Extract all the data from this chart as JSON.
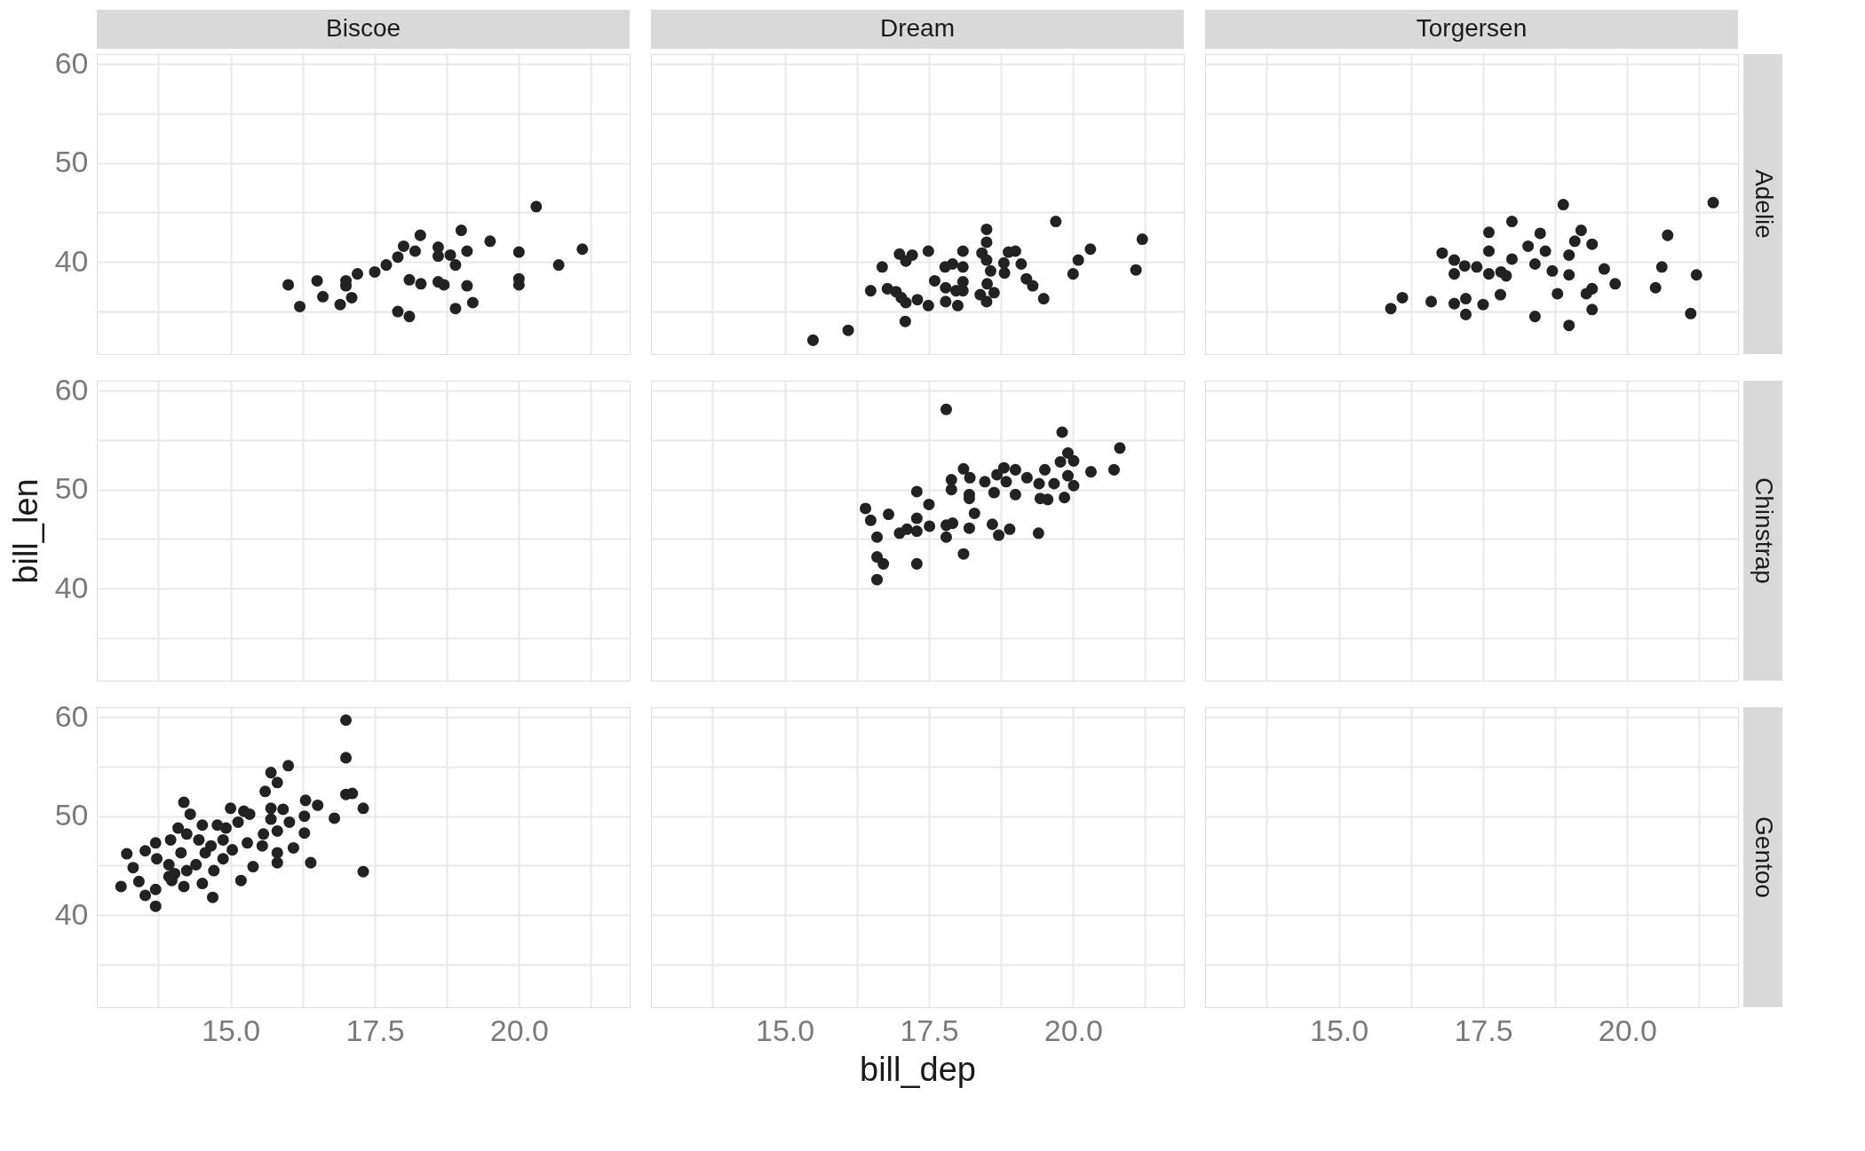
{
  "chart_data": [
    {
      "type": "scatter",
      "title": "Biscoe",
      "tick_labels": "y",
      "marker": "circle",
      "grid": true,
      "color": "#222222",
      "x": [
        20.3,
        18.29,
        19.0,
        18.0,
        18.2,
        18.6,
        18.6,
        18.81,
        18.9,
        19.1,
        19.5,
        20.0,
        21.1,
        20.69,
        17.9,
        17.7,
        17.5,
        17.2,
        17.0,
        17.0,
        17.1,
        16.9,
        16.5,
        16.6,
        16.0,
        16.2,
        18.1,
        18.3,
        18.6,
        18.7,
        19.1,
        19.2,
        18.9,
        17.9,
        18.1,
        20.0,
        20.0
      ],
      "values": [
        45.6,
        42.7,
        43.2,
        41.6,
        41.1,
        41.5,
        40.6,
        40.7,
        39.7,
        41.1,
        42.1,
        41.0,
        41.3,
        39.7,
        40.5,
        39.7,
        39.0,
        38.8,
        38.1,
        37.6,
        36.4,
        35.7,
        38.1,
        36.5,
        37.7,
        35.5,
        38.2,
        37.8,
        38.0,
        37.7,
        37.6,
        35.9,
        35.3,
        35.0,
        34.5,
        38.3,
        37.7
      ],
      "xlim": [
        12.68,
        21.92
      ],
      "ylim": [
        30.7,
        61.0
      ],
      "xticks": [
        {
          "value": 13.75,
          "label": null
        },
        {
          "value": 15,
          "label": null
        },
        {
          "value": 16.25,
          "label": null
        },
        {
          "value": 17.5,
          "label": null
        },
        {
          "value": 18.75,
          "label": null
        },
        {
          "value": 20,
          "label": null
        },
        {
          "value": 21.25,
          "label": null
        }
      ],
      "yticks": [
        {
          "value": 35,
          "label": null
        },
        40,
        {
          "value": 45,
          "label": null
        },
        50,
        {
          "value": 55,
          "label": null
        },
        60
      ]
    },
    {
      "type": "scatter",
      "title": "Dream",
      "tick_labels": false,
      "marker": "circle",
      "grid": true,
      "color": "#222222",
      "x": [
        15.49,
        16.1,
        17.09,
        16.49,
        16.69,
        16.99,
        17.1,
        17.21,
        17.49,
        16.78,
        16.93,
        17.02,
        17.1,
        17.3,
        17.49,
        17.6,
        17.78,
        17.91,
        18.09,
        18.09,
        17.79,
        17.79,
        17.97,
        18.09,
        18.09,
        18.0,
        18.5,
        18.5,
        18.42,
        18.5,
        18.57,
        18.51,
        18.39,
        18.5,
        18.63,
        18.8,
        18.81,
        18.88,
        19.0,
        19.1,
        19.19,
        19.3,
        19.49,
        19.7,
        20.09,
        20.3,
        20.0,
        21.2,
        21.09
      ],
      "values": [
        32.1,
        33.1,
        34.0,
        37.1,
        39.5,
        40.8,
        40.1,
        40.7,
        41.1,
        37.3,
        37.0,
        36.4,
        35.9,
        36.2,
        35.6,
        38.1,
        39.5,
        39.8,
        39.5,
        41.1,
        37.4,
        36.0,
        37.1,
        38.0,
        37.1,
        35.6,
        43.3,
        42.0,
        40.9,
        40.2,
        39.1,
        37.8,
        36.7,
        36.0,
        36.9,
        39.9,
        38.9,
        41.0,
        41.1,
        39.8,
        38.3,
        37.6,
        36.3,
        44.1,
        40.2,
        41.3,
        38.8,
        42.3,
        39.2
      ],
      "xlim": [
        12.68,
        21.92
      ],
      "ylim": [
        30.7,
        61.0
      ],
      "xticks": [
        {
          "value": 13.75,
          "label": null
        },
        {
          "value": 15,
          "label": null
        },
        {
          "value": 16.25,
          "label": null
        },
        {
          "value": 17.5,
          "label": null
        },
        {
          "value": 18.75,
          "label": null
        },
        {
          "value": 20,
          "label": null
        },
        {
          "value": 21.25,
          "label": null
        }
      ],
      "yticks": [
        {
          "value": 35,
          "label": null
        },
        40,
        {
          "value": 45,
          "label": null
        },
        50,
        {
          "value": 55,
          "label": null
        },
        60
      ]
    },
    {
      "type": "scatter",
      "title": "Torgersen",
      "y2label": "Adelie",
      "tick_labels": false,
      "marker": "circle",
      "grid": true,
      "color": "#222222",
      "x": [
        18.89,
        21.49,
        18.0,
        17.6,
        18.49,
        19.2,
        19.09,
        19.39,
        18.28,
        18.58,
        17.6,
        16.79,
        17.0,
        17.18,
        17.39,
        17.6,
        17.81,
        17.9,
        17.0,
        18.0,
        18.4,
        18.7,
        18.99,
        18.99,
        19.6,
        19.79,
        19.39,
        19.29,
        18.79,
        19.39,
        18.4,
        18.99,
        17.8,
        17.5,
        17.2,
        17.0,
        17.2,
        16.6,
        16.1,
        15.9,
        20.7,
        20.6,
        20.49,
        21.2,
        21.1
      ],
      "values": [
        45.8,
        46.0,
        44.1,
        43.0,
        42.9,
        43.2,
        42.1,
        41.8,
        41.6,
        41.1,
        41.1,
        40.9,
        40.2,
        39.6,
        39.5,
        38.8,
        39.0,
        38.6,
        38.8,
        40.3,
        39.8,
        39.1,
        40.7,
        38.7,
        39.3,
        37.8,
        37.3,
        36.8,
        36.8,
        35.2,
        34.5,
        33.6,
        36.7,
        35.7,
        36.3,
        35.8,
        34.7,
        36.0,
        36.4,
        35.3,
        42.7,
        39.5,
        37.4,
        38.7,
        34.8
      ],
      "xlim": [
        12.68,
        21.92
      ],
      "ylim": [
        30.7,
        61.0
      ],
      "xticks": [
        {
          "value": 13.75,
          "label": null
        },
        {
          "value": 15,
          "label": null
        },
        {
          "value": 16.25,
          "label": null
        },
        {
          "value": 17.5,
          "label": null
        },
        {
          "value": 18.75,
          "label": null
        },
        {
          "value": 20,
          "label": null
        },
        {
          "value": 21.25,
          "label": null
        }
      ],
      "yticks": [
        {
          "value": 35,
          "label": null
        },
        40,
        {
          "value": 45,
          "label": null
        },
        50,
        {
          "value": 55,
          "label": null
        },
        60
      ]
    },
    {
      "type": "scatter",
      "ylabel": "bill_len",
      "tick_labels": "y",
      "grid": true,
      "xlim": [
        12.68,
        21.92
      ],
      "ylim": [
        30.7,
        61.0
      ],
      "xticks": [
        {
          "value": 13.75,
          "label": null
        },
        {
          "value": 15,
          "label": null
        },
        {
          "value": 16.25,
          "label": null
        },
        {
          "value": 17.5,
          "label": null
        },
        {
          "value": 18.75,
          "label": null
        },
        {
          "value": 20,
          "label": null
        },
        {
          "value": 21.25,
          "label": null
        }
      ],
      "yticks": [
        {
          "value": 35,
          "label": null
        },
        40,
        {
          "value": 45,
          "label": null
        },
        50,
        {
          "value": 55,
          "label": null
        },
        60
      ]
    },
    {
      "type": "scatter",
      "tick_labels": false,
      "marker": "circle",
      "grid": true,
      "color": "#222222",
      "x": [
        17.8,
        19.81,
        20.81,
        19.91,
        20.01,
        19.78,
        20.31,
        20.71,
        19.51,
        18.1,
        18.21,
        17.89,
        17.89,
        18.8,
        19.0,
        19.2,
        18.68,
        18.47,
        18.63,
        19.0,
        18.84,
        19.41,
        19.67,
        19.91,
        20.01,
        19.43,
        19.56,
        19.85,
        18.2,
        18.2,
        17.29,
        17.5,
        18.29,
        16.4,
        16.49,
        16.8,
        16.6,
        16.99,
        17.12,
        17.29,
        17.29,
        17.51,
        17.8,
        17.91,
        17.8,
        18.2,
        18.6,
        18.71,
        18.9,
        19.4,
        18.1,
        16.6,
        16.71,
        17.29,
        16.6
      ],
      "values": [
        58.1,
        55.8,
        54.2,
        53.7,
        52.9,
        52.8,
        51.8,
        52.0,
        52.0,
        52.1,
        51.2,
        51.0,
        50.0,
        52.2,
        52.0,
        51.2,
        51.5,
        50.8,
        49.7,
        49.5,
        50.8,
        50.6,
        50.6,
        51.4,
        50.4,
        49.1,
        49.0,
        49.2,
        49.5,
        49.1,
        49.8,
        48.5,
        47.6,
        48.1,
        46.9,
        47.5,
        45.2,
        45.6,
        46.0,
        47.1,
        45.8,
        46.3,
        46.4,
        46.6,
        45.2,
        46.1,
        46.5,
        45.4,
        46.0,
        45.6,
        43.5,
        43.2,
        42.5,
        42.5,
        40.9
      ],
      "xlim": [
        12.68,
        21.92
      ],
      "ylim": [
        30.7,
        61.0
      ],
      "xticks": [
        {
          "value": 13.75,
          "label": null
        },
        {
          "value": 15,
          "label": null
        },
        {
          "value": 16.25,
          "label": null
        },
        {
          "value": 17.5,
          "label": null
        },
        {
          "value": 18.75,
          "label": null
        },
        {
          "value": 20,
          "label": null
        },
        {
          "value": 21.25,
          "label": null
        }
      ],
      "yticks": [
        {
          "value": 35,
          "label": null
        },
        40,
        {
          "value": 45,
          "label": null
        },
        50,
        {
          "value": 55,
          "label": null
        },
        60
      ]
    },
    {
      "type": "scatter",
      "y2label": "Chinstrap",
      "tick_labels": false,
      "grid": true,
      "xlim": [
        12.68,
        21.92
      ],
      "ylim": [
        30.7,
        61.0
      ],
      "xticks": [
        {
          "value": 13.75,
          "label": null
        },
        {
          "value": 15,
          "label": null
        },
        {
          "value": 16.25,
          "label": null
        },
        {
          "value": 17.5,
          "label": null
        },
        {
          "value": 18.75,
          "label": null
        },
        {
          "value": 20,
          "label": null
        },
        {
          "value": 21.25,
          "label": null
        }
      ],
      "yticks": [
        {
          "value": 35,
          "label": null
        },
        40,
        {
          "value": 45,
          "label": null
        },
        50,
        {
          "value": 55,
          "label": null
        },
        60
      ]
    },
    {
      "type": "scatter",
      "marker": "circle",
      "grid": true,
      "color": "#222222",
      "x": [
        17.0,
        17.0,
        16.0,
        15.7,
        15.81,
        15.6,
        17.0,
        17.11,
        17.3,
        16.8,
        17.3,
        16.39,
        16.3,
        16.51,
        16.28,
        16.28,
        16.09,
        15.7,
        15.91,
        15.7,
        16.02,
        15.81,
        15.57,
        15.81,
        15.81,
        15.39,
        15.18,
        14.69,
        15.0,
        15.23,
        15.33,
        15.13,
        14.92,
        15.29,
        15.55,
        14.19,
        14.3,
        14.09,
        13.96,
        14.51,
        14.77,
        14.24,
        14.45,
        14.66,
        14.87,
        15.03,
        14.87,
        14.71,
        14.51,
        14.19,
        13.98,
        13.72,
        13.7,
        13.52,
        13.2,
        13.31,
        13.1,
        13.41,
        13.52,
        13.7,
        13.7,
        13.93,
        14.14,
        14.4,
        14.24,
        14.03,
        14.56,
        13.93
      ],
      "values": [
        59.7,
        55.9,
        55.1,
        54.4,
        53.4,
        52.5,
        52.2,
        52.3,
        50.8,
        49.8,
        44.4,
        45.3,
        51.6,
        51.1,
        50.0,
        48.3,
        46.8,
        50.8,
        50.7,
        49.7,
        49.4,
        48.5,
        48.2,
        46.3,
        45.3,
        44.9,
        43.5,
        41.8,
        50.8,
        50.5,
        50.2,
        49.4,
        48.8,
        47.3,
        47.0,
        51.4,
        50.2,
        48.8,
        47.6,
        49.1,
        49.1,
        48.2,
        47.6,
        47.0,
        47.6,
        46.6,
        45.7,
        44.5,
        43.2,
        42.9,
        43.5,
        45.7,
        47.3,
        46.5,
        46.2,
        44.8,
        42.9,
        43.4,
        42.0,
        40.9,
        42.6,
        45.1,
        46.3,
        45.1,
        44.5,
        44.2,
        46.3,
        43.9
      ],
      "xlim": [
        12.68,
        21.92
      ],
      "ylim": [
        30.7,
        61.0
      ],
      "xticks": [
        {
          "value": 13.75,
          "label": null
        },
        {
          "value": 15,
          "label": "15.0"
        },
        {
          "value": 16.25,
          "label": null
        },
        {
          "value": 17.5,
          "label": "17.5"
        },
        {
          "value": 18.75,
          "label": null
        },
        {
          "value": 20,
          "label": "20.0"
        },
        {
          "value": 21.25,
          "label": null
        }
      ],
      "yticks": [
        {
          "value": 35,
          "label": null
        },
        40,
        {
          "value": 45,
          "label": null
        },
        50,
        {
          "value": 55,
          "label": null
        },
        60
      ]
    },
    {
      "type": "scatter",
      "xlabel": "bill_dep",
      "tick_labels": "x",
      "grid": true,
      "xlim": [
        12.68,
        21.92
      ],
      "ylim": [
        30.7,
        61.0
      ],
      "xticks": [
        {
          "value": 13.75,
          "label": null
        },
        {
          "value": 15,
          "label": "15.0"
        },
        {
          "value": 16.25,
          "label": null
        },
        {
          "value": 17.5,
          "label": "17.5"
        },
        {
          "value": 18.75,
          "label": null
        },
        {
          "value": 20,
          "label": "20.0"
        },
        {
          "value": 21.25,
          "label": null
        }
      ],
      "yticks": [
        {
          "value": 35,
          "label": null
        },
        40,
        {
          "value": 45,
          "label": null
        },
        50,
        {
          "value": 55,
          "label": null
        },
        60
      ]
    },
    {
      "type": "scatter",
      "y2label": "Gentoo",
      "tick_labels": "x",
      "grid": true,
      "xlim": [
        12.68,
        21.92
      ],
      "ylim": [
        30.7,
        61.0
      ],
      "xticks": [
        {
          "value": 13.75,
          "label": null
        },
        {
          "value": 15,
          "label": "15.0"
        },
        {
          "value": 16.25,
          "label": null
        },
        {
          "value": 17.5,
          "label": "17.5"
        },
        {
          "value": 18.75,
          "label": null
        },
        {
          "value": 20,
          "label": "20.0"
        },
        {
          "value": 21.25,
          "label": null
        }
      ],
      "yticks": [
        {
          "value": 35,
          "label": null
        },
        40,
        {
          "value": 45,
          "label": null
        },
        50,
        {
          "value": 55,
          "label": null
        },
        60
      ]
    }
  ]
}
